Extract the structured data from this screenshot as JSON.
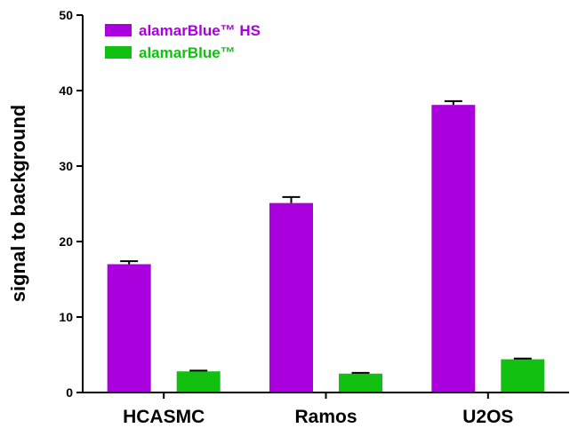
{
  "chart_data": {
    "type": "bar",
    "categories": [
      "HCASMC",
      "Ramos",
      "U2OS"
    ],
    "series": [
      {
        "name": "alamarBlue™ HS",
        "color": "#aa00dd",
        "values": [
          17.0,
          25.1,
          38.1
        ],
        "errors": [
          0.4,
          0.8,
          0.5
        ]
      },
      {
        "name": "alamarBlue™",
        "color": "#11c011",
        "values": [
          2.8,
          2.5,
          4.4
        ],
        "errors": [
          0.1,
          0.1,
          0.1
        ]
      }
    ],
    "ylabel": "signal to background",
    "xlabel": "",
    "ylim": [
      0,
      50
    ],
    "yticks": [
      0,
      10,
      20,
      30,
      40,
      50
    ],
    "legend_position": "top-left",
    "grid": false
  }
}
